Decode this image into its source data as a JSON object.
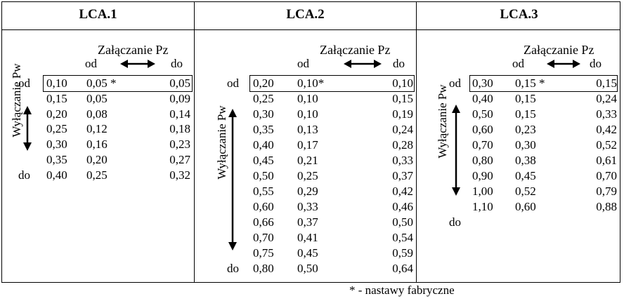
{
  "footnote": "* - nastawy fabryczne",
  "panels": [
    {
      "title": "LCA.1",
      "zal_label": "Załączanie Pz",
      "od_label": "od",
      "do_label": "do",
      "wyl_label": "Wyłączanie Pw",
      "row_od": "od",
      "row_do": "do",
      "rows": [
        [
          "0,10",
          "0,05 *",
          "0,05"
        ],
        [
          "0,15",
          "0,05",
          "0,09"
        ],
        [
          "0,20",
          "0,08",
          "0,14"
        ],
        [
          "0,25",
          "0,12",
          "0,18"
        ],
        [
          "0,30",
          "0,16",
          "0,23"
        ],
        [
          "0,35",
          "0,20",
          "0,27"
        ],
        [
          "0,40",
          "0,25",
          "0,32"
        ]
      ]
    },
    {
      "title": "LCA.2",
      "zal_label": "Załączanie Pz",
      "od_label": "od",
      "do_label": "do",
      "wyl_label": "Wyłączanie Pw",
      "row_od": "od",
      "row_do": "do",
      "rows": [
        [
          "0,20",
          "0,10*",
          "0,10"
        ],
        [
          "0,25",
          "0,10",
          "0,15"
        ],
        [
          "0,30",
          "0,10",
          "0,19"
        ],
        [
          "0,35",
          "0,13",
          "0,24"
        ],
        [
          "0,40",
          "0,17",
          "0,28"
        ],
        [
          "0,45",
          "0,21",
          "0,33"
        ],
        [
          "0,50",
          "0,25",
          "0,37"
        ],
        [
          "0,55",
          "0,29",
          "0,42"
        ],
        [
          "0,60",
          "0,33",
          "0,46"
        ],
        [
          "0,66",
          "0,37",
          "0,50"
        ],
        [
          "0,70",
          "0,41",
          "0,54"
        ],
        [
          "0,75",
          "0,45",
          "0,59"
        ],
        [
          "0,80",
          "0,50",
          "0,64"
        ]
      ]
    },
    {
      "title": "LCA.3",
      "zal_label": "Załączanie Pz",
      "od_label": "od",
      "do_label": "do",
      "wyl_label": "Wyłączanie Pw",
      "row_od": "od",
      "row_do": "do",
      "rows": [
        [
          "0,30",
          "0,15 *",
          "0,15"
        ],
        [
          "0,40",
          "0,15",
          "0,24"
        ],
        [
          "0,50",
          "0,15",
          "0,33"
        ],
        [
          "0,60",
          "0,23",
          "0,42"
        ],
        [
          "0,70",
          "0,30",
          "0,52"
        ],
        [
          "0,80",
          "0,38",
          "0,61"
        ],
        [
          "0,90",
          "0,45",
          "0,70"
        ],
        [
          "1,00",
          "0,52",
          "0,79"
        ],
        [
          "1,10",
          "0,60",
          "0,88"
        ]
      ]
    }
  ]
}
